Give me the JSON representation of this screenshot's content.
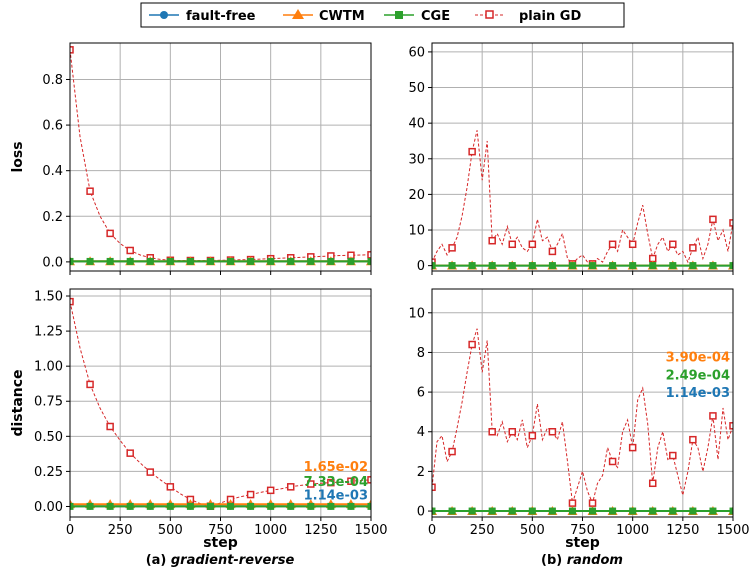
{
  "legend": {
    "placement": "top-center",
    "entries": [
      {
        "label": "fault-free",
        "color": "#1f77b4",
        "marker": "circle",
        "dash": false
      },
      {
        "label": "CWTM",
        "color": "#ff7f0e",
        "marker": "triangle",
        "dash": false
      },
      {
        "label": "CGE",
        "color": "#2ca02c",
        "marker": "square",
        "dash": false
      },
      {
        "label": "plain GD",
        "color": "#d62728",
        "marker": "open-square",
        "dash": true
      }
    ]
  },
  "captions": [
    "(a) gradient-reverse",
    "(b) random"
  ],
  "caption_parts": [
    {
      "prefix": "(a) ",
      "name": "gradient-reverse"
    },
    {
      "prefix": "(b) ",
      "name": "random"
    }
  ],
  "chart_data": [
    {
      "type": "line",
      "id": "a-loss",
      "xlabel": "",
      "ylabel": "loss",
      "xlim": [
        0,
        1500
      ],
      "ylim": [
        -0.04,
        0.96
      ],
      "yticks": [
        0.0,
        0.2,
        0.4,
        0.6,
        0.8
      ],
      "ytick_labels": [
        "0.0",
        "0.2",
        "0.4",
        "0.6",
        "0.8"
      ],
      "xticks": [
        0,
        250,
        500,
        750,
        1000,
        1250,
        1500
      ],
      "show_xtick_labels": false,
      "grid": true,
      "series": [
        {
          "name": "plain GD",
          "x": [
            0,
            50,
            100,
            150,
            200,
            250,
            300,
            350,
            400,
            450,
            500,
            550,
            600,
            650,
            700,
            750,
            800,
            850,
            900,
            950,
            1000,
            1050,
            1100,
            1150,
            1200,
            1250,
            1300,
            1350,
            1400,
            1450,
            1500
          ],
          "y": [
            0.93,
            0.55,
            0.31,
            0.2,
            0.125,
            0.08,
            0.05,
            0.03,
            0.018,
            0.011,
            0.007,
            0.006,
            0.006,
            0.006,
            0.006,
            0.007,
            0.008,
            0.009,
            0.01,
            0.012,
            0.014,
            0.016,
            0.018,
            0.02,
            0.022,
            0.024,
            0.026,
            0.028,
            0.029,
            0.03,
            0.031
          ]
        },
        {
          "name": "fault-free",
          "x": [
            0,
            1500
          ],
          "y": [
            0.002,
            0.002
          ]
        },
        {
          "name": "CWTM",
          "x": [
            0,
            1500
          ],
          "y": [
            0.003,
            0.003
          ]
        },
        {
          "name": "CGE",
          "x": [
            0,
            1500
          ],
          "y": [
            0.002,
            0.002
          ]
        }
      ],
      "annotations": []
    },
    {
      "type": "line",
      "id": "b-loss",
      "xlabel": "",
      "ylabel": "",
      "xlim": [
        0,
        1500
      ],
      "ylim": [
        -1.5,
        62.5
      ],
      "yticks": [
        0,
        10,
        20,
        30,
        40,
        50,
        60
      ],
      "ytick_labels": [
        "0",
        "10",
        "20",
        "30",
        "40",
        "50",
        "60"
      ],
      "xticks": [
        0,
        250,
        500,
        750,
        1000,
        1250,
        1500
      ],
      "show_xtick_labels": false,
      "grid": true,
      "series": [
        {
          "name": "plain GD",
          "x": [
            0,
            25,
            50,
            75,
            100,
            125,
            150,
            175,
            200,
            225,
            250,
            275,
            300,
            325,
            350,
            375,
            400,
            425,
            450,
            475,
            500,
            525,
            550,
            575,
            600,
            625,
            650,
            675,
            700,
            725,
            750,
            775,
            800,
            825,
            850,
            875,
            900,
            925,
            950,
            975,
            1000,
            1025,
            1050,
            1075,
            1100,
            1125,
            1150,
            1175,
            1200,
            1225,
            1250,
            1275,
            1300,
            1325,
            1350,
            1375,
            1400,
            1425,
            1450,
            1475,
            1500
          ],
          "y": [
            1,
            4,
            6,
            3,
            5,
            8,
            14,
            22,
            32,
            38,
            24,
            35,
            7,
            9,
            6,
            11,
            6,
            8,
            5,
            4,
            6,
            13,
            7,
            8,
            4,
            6,
            9,
            2,
            0.5,
            2,
            3,
            1,
            0.5,
            2,
            1,
            4,
            6,
            4,
            10,
            8,
            6,
            12,
            17,
            9,
            2,
            6,
            8,
            4,
            6,
            3,
            4,
            1,
            5,
            8,
            2,
            6,
            13,
            7,
            10,
            4,
            12
          ]
        },
        {
          "name": "fault-free",
          "x": [
            0,
            1500
          ],
          "y": [
            0.02,
            0.02
          ]
        },
        {
          "name": "CWTM",
          "x": [
            0,
            1500
          ],
          "y": [
            0.03,
            0.03
          ]
        },
        {
          "name": "CGE",
          "x": [
            0,
            1500
          ],
          "y": [
            0.02,
            0.02
          ]
        }
      ],
      "annotations": []
    },
    {
      "type": "line",
      "id": "a-distance",
      "xlabel": "step",
      "ylabel": "distance",
      "xlim": [
        0,
        1500
      ],
      "ylim": [
        -0.075,
        1.55
      ],
      "yticks": [
        0.0,
        0.25,
        0.5,
        0.75,
        1.0,
        1.25,
        1.5
      ],
      "ytick_labels": [
        "0.00",
        "0.25",
        "0.50",
        "0.75",
        "1.00",
        "1.25",
        "1.50"
      ],
      "xticks": [
        0,
        250,
        500,
        750,
        1000,
        1250,
        1500
      ],
      "xtick_labels": [
        "0",
        "250",
        "500",
        "750",
        "1000",
        "1250",
        "1500"
      ],
      "show_xtick_labels": true,
      "grid": true,
      "series": [
        {
          "name": "plain GD",
          "x": [
            0,
            50,
            100,
            150,
            200,
            250,
            300,
            350,
            400,
            450,
            500,
            550,
            600,
            650,
            700,
            750,
            800,
            850,
            900,
            950,
            1000,
            1050,
            1100,
            1150,
            1200,
            1250,
            1300,
            1350,
            1400,
            1450,
            1500
          ],
          "y": [
            1.46,
            1.13,
            0.87,
            0.7,
            0.57,
            0.47,
            0.38,
            0.31,
            0.245,
            0.19,
            0.14,
            0.09,
            0.05,
            0.02,
            0.002,
            0.025,
            0.05,
            0.07,
            0.085,
            0.1,
            0.115,
            0.125,
            0.14,
            0.15,
            0.16,
            0.165,
            0.17,
            0.175,
            0.18,
            0.185,
            0.19
          ]
        },
        {
          "name": "fault-free",
          "x": [
            0,
            1500
          ],
          "y": [
            0.00114,
            0.00114
          ]
        },
        {
          "name": "CWTM",
          "x": [
            0,
            1500
          ],
          "y": [
            0.0165,
            0.0165
          ]
        },
        {
          "name": "CGE",
          "x": [
            0,
            1500
          ],
          "y": [
            0.000733,
            0.000733
          ]
        }
      ],
      "annotations": [
        {
          "text": "1.65e-02",
          "color": "#ff7f0e",
          "y": 0.29
        },
        {
          "text": "7.33e-04",
          "color": "#2ca02c",
          "y": 0.18
        },
        {
          "text": "1.14e-03",
          "color": "#1f77b4",
          "y": 0.085
        }
      ]
    },
    {
      "type": "line",
      "id": "b-distance",
      "xlabel": "step",
      "ylabel": "",
      "xlim": [
        0,
        1500
      ],
      "ylim": [
        -0.3,
        11.2
      ],
      "yticks": [
        0,
        2,
        4,
        6,
        8,
        10
      ],
      "ytick_labels": [
        "0",
        "2",
        "4",
        "6",
        "8",
        "10"
      ],
      "xticks": [
        0,
        250,
        500,
        750,
        1000,
        1250,
        1500
      ],
      "xtick_labels": [
        "0",
        "250",
        "500",
        "750",
        "1000",
        "1250",
        "1500"
      ],
      "show_xtick_labels": true,
      "grid": true,
      "series": [
        {
          "name": "plain GD",
          "x": [
            0,
            25,
            50,
            75,
            100,
            125,
            150,
            175,
            200,
            225,
            250,
            275,
            300,
            325,
            350,
            375,
            400,
            425,
            450,
            475,
            500,
            525,
            550,
            575,
            600,
            625,
            650,
            675,
            700,
            725,
            750,
            775,
            800,
            825,
            850,
            875,
            900,
            925,
            950,
            975,
            1000,
            1025,
            1050,
            1075,
            1100,
            1125,
            1150,
            1175,
            1200,
            1225,
            1250,
            1275,
            1300,
            1325,
            1350,
            1375,
            1400,
            1425,
            1450,
            1475,
            1500
          ],
          "y": [
            1.2,
            3.5,
            3.8,
            2.5,
            3,
            4.2,
            5.5,
            7,
            8.4,
            9.2,
            7,
            8.6,
            4,
            3.8,
            4.5,
            3.5,
            4,
            3.6,
            4.6,
            3.2,
            3.8,
            5.4,
            3.6,
            4.2,
            4,
            3.6,
            4.5,
            2.5,
            0.4,
            1.2,
            2,
            1,
            0.4,
            1.4,
            1.8,
            3.2,
            2.5,
            2.2,
            4,
            4.6,
            3.2,
            5.6,
            6.2,
            4.4,
            1.4,
            3.2,
            4,
            2.6,
            2.8,
            1.8,
            0.8,
            2,
            3.6,
            3.2,
            2,
            3.2,
            4.8,
            2.6,
            5.2,
            3.6,
            4.3
          ]
        },
        {
          "name": "fault-free",
          "x": [
            0,
            1500
          ],
          "y": [
            0.00114,
            0.00114
          ]
        },
        {
          "name": "CWTM",
          "x": [
            0,
            1500
          ],
          "y": [
            0.00039,
            0.00039
          ]
        },
        {
          "name": "CGE",
          "x": [
            0,
            1500
          ],
          "y": [
            0.000249,
            0.000249
          ]
        }
      ],
      "annotations": [
        {
          "text": "3.90e-04",
          "color": "#ff7f0e",
          "y": 7.8
        },
        {
          "text": "2.49e-04",
          "color": "#2ca02c",
          "y": 6.9
        },
        {
          "text": "1.14e-03",
          "color": "#1f77b4",
          "y": 6.0
        }
      ]
    }
  ]
}
